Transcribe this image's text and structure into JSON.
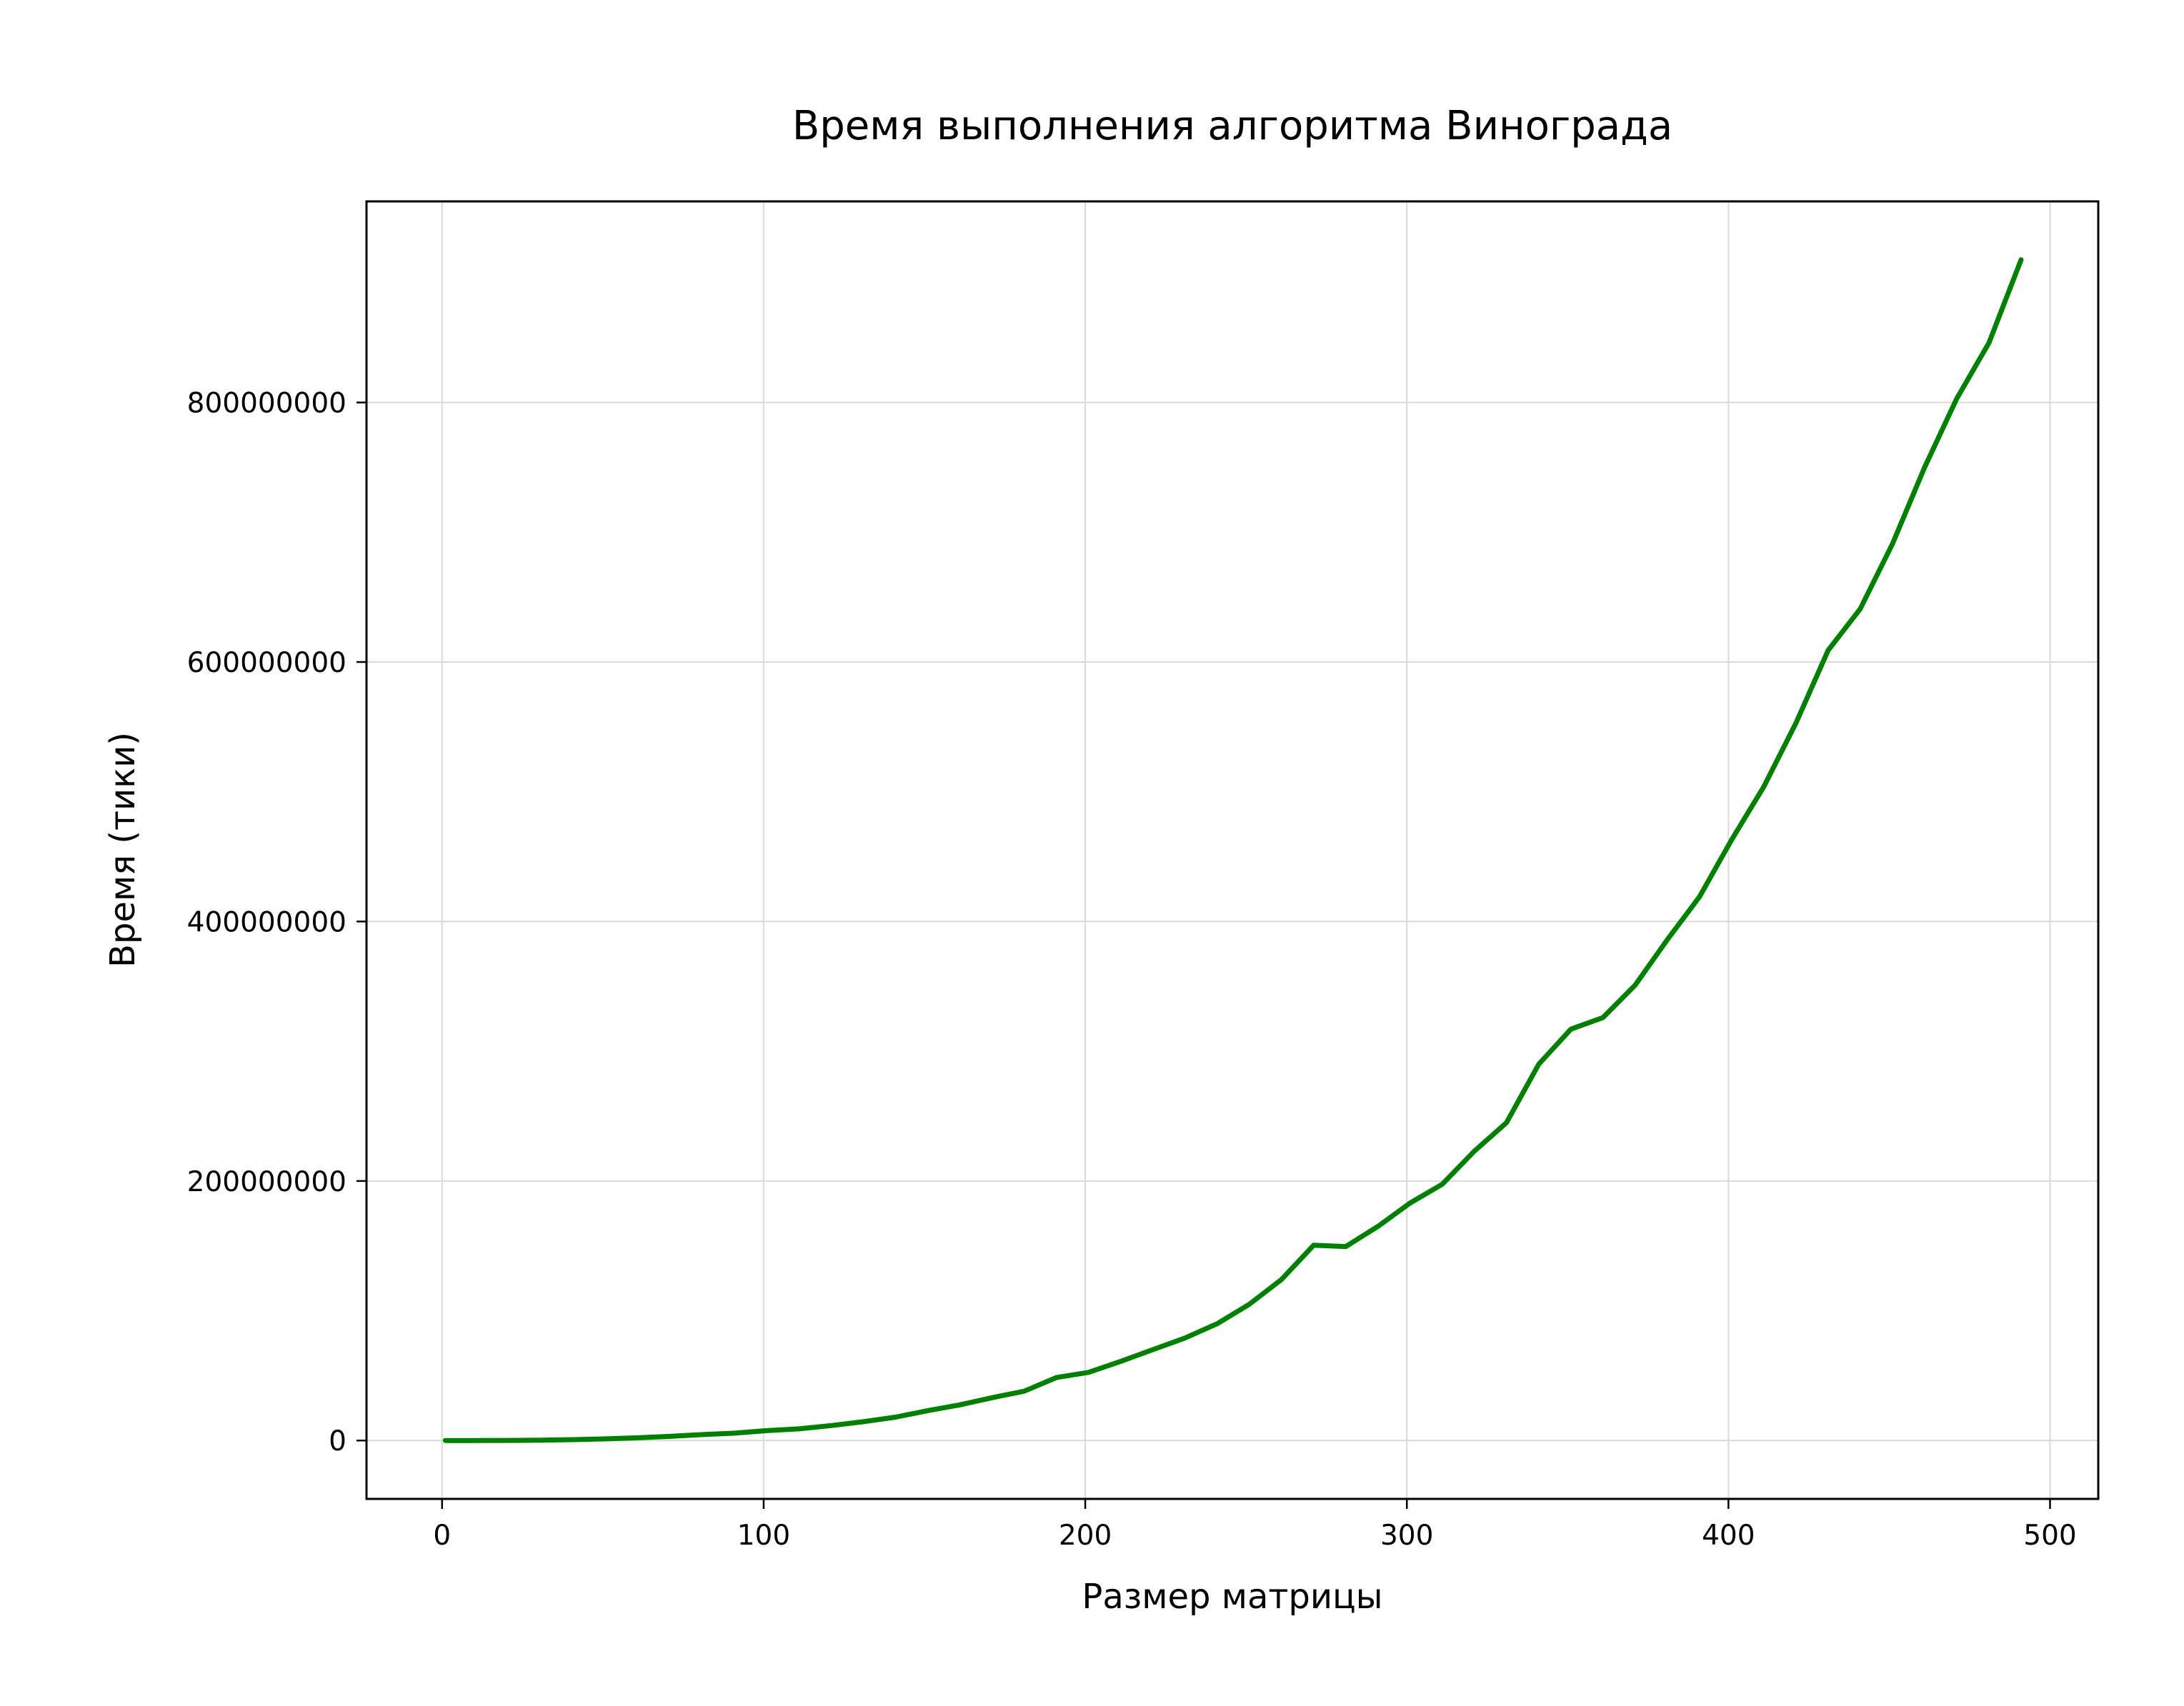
{
  "chart_data": {
    "type": "line",
    "title": "Время выполнения алгоритма Винограда",
    "xlabel": "Размер матрицы",
    "ylabel": "Время (тики)",
    "xlim": [
      -23.5,
      515
    ],
    "ylim": [
      -45000000,
      955000000
    ],
    "xticks": [
      0,
      100,
      200,
      300,
      400,
      500
    ],
    "yticks": [
      0,
      200000000,
      400000000,
      600000000,
      800000000
    ],
    "xtick_labels": [
      "0",
      "100",
      "200",
      "300",
      "400",
      "500"
    ],
    "ytick_labels": [
      "0",
      "200000000",
      "400000000",
      "600000000",
      "800000000"
    ],
    "grid": true,
    "line_color": "#008000",
    "series": [
      {
        "x": [
          1,
          11,
          21,
          31,
          41,
          51,
          61,
          71,
          81,
          91,
          101,
          111,
          121,
          131,
          141,
          151,
          161,
          171,
          181,
          191,
          201,
          211,
          221,
          231,
          241,
          251,
          261,
          271,
          281,
          291,
          301,
          311,
          321,
          331,
          341,
          351,
          361,
          371,
          381,
          391,
          401,
          411,
          421,
          431,
          441,
          451,
          461,
          471,
          481,
          491
        ],
        "values": [
          0,
          5000,
          100000,
          300000,
          700000,
          1300000,
          2100000,
          3200000,
          4600000,
          5700000,
          7600000,
          9000000,
          11500000,
          14500000,
          18000000,
          23000000,
          27500000,
          33000000,
          38000000,
          48500000,
          52500000,
          61000000,
          70000000,
          79000000,
          90000000,
          105000000,
          124000000,
          150500000,
          149500000,
          165000000,
          183000000,
          197500000,
          223000000,
          245000000,
          290000000,
          317000000,
          326000000,
          351000000,
          386000000,
          419000000,
          463000000,
          504000000,
          553000000,
          609000000,
          641000000,
          691000000,
          750000000,
          803000000,
          846000000,
          910000000
        ]
      }
    ]
  }
}
